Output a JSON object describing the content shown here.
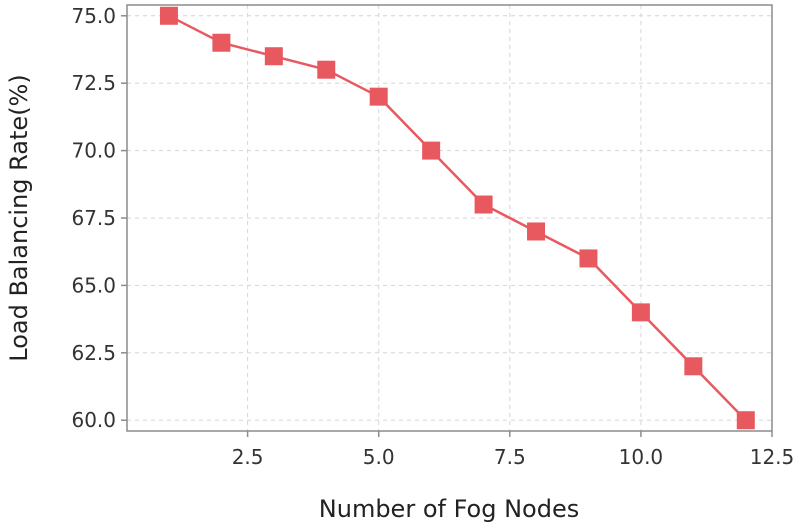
{
  "chart_data": {
    "type": "line",
    "title": "",
    "xlabel": "Number of Fog Nodes",
    "ylabel": "Load Balancing Rate(%)",
    "xlim": [
      0.2,
      12.5
    ],
    "ylim": [
      59.6,
      75.4
    ],
    "x_ticks": [
      2.5,
      5.0,
      7.5,
      10.0,
      12.5
    ],
    "x_tick_labels": [
      "2.5",
      "5.0",
      "7.5",
      "10.0",
      "12.5"
    ],
    "y_ticks": [
      60.0,
      62.5,
      65.0,
      67.5,
      70.0,
      72.5,
      75.0
    ],
    "y_tick_labels": [
      "60.0",
      "62.5",
      "65.0",
      "67.5",
      "70.0",
      "72.5",
      "75.0"
    ],
    "grid": true,
    "legend": "none",
    "series": [
      {
        "color": "#e8595f",
        "marker": "square",
        "x": [
          1,
          2,
          3,
          4,
          5,
          6,
          7,
          8,
          9,
          10,
          11,
          12
        ],
        "y": [
          75.0,
          74.0,
          73.5,
          73.0,
          72.0,
          70.0,
          68.0,
          67.0,
          66.0,
          64.0,
          62.0,
          60.0
        ]
      }
    ]
  },
  "style": {
    "plot_background": "#ffffff",
    "axis_color": "#888888",
    "grid_color": "#d6d6d6",
    "text_color": "#333333"
  }
}
